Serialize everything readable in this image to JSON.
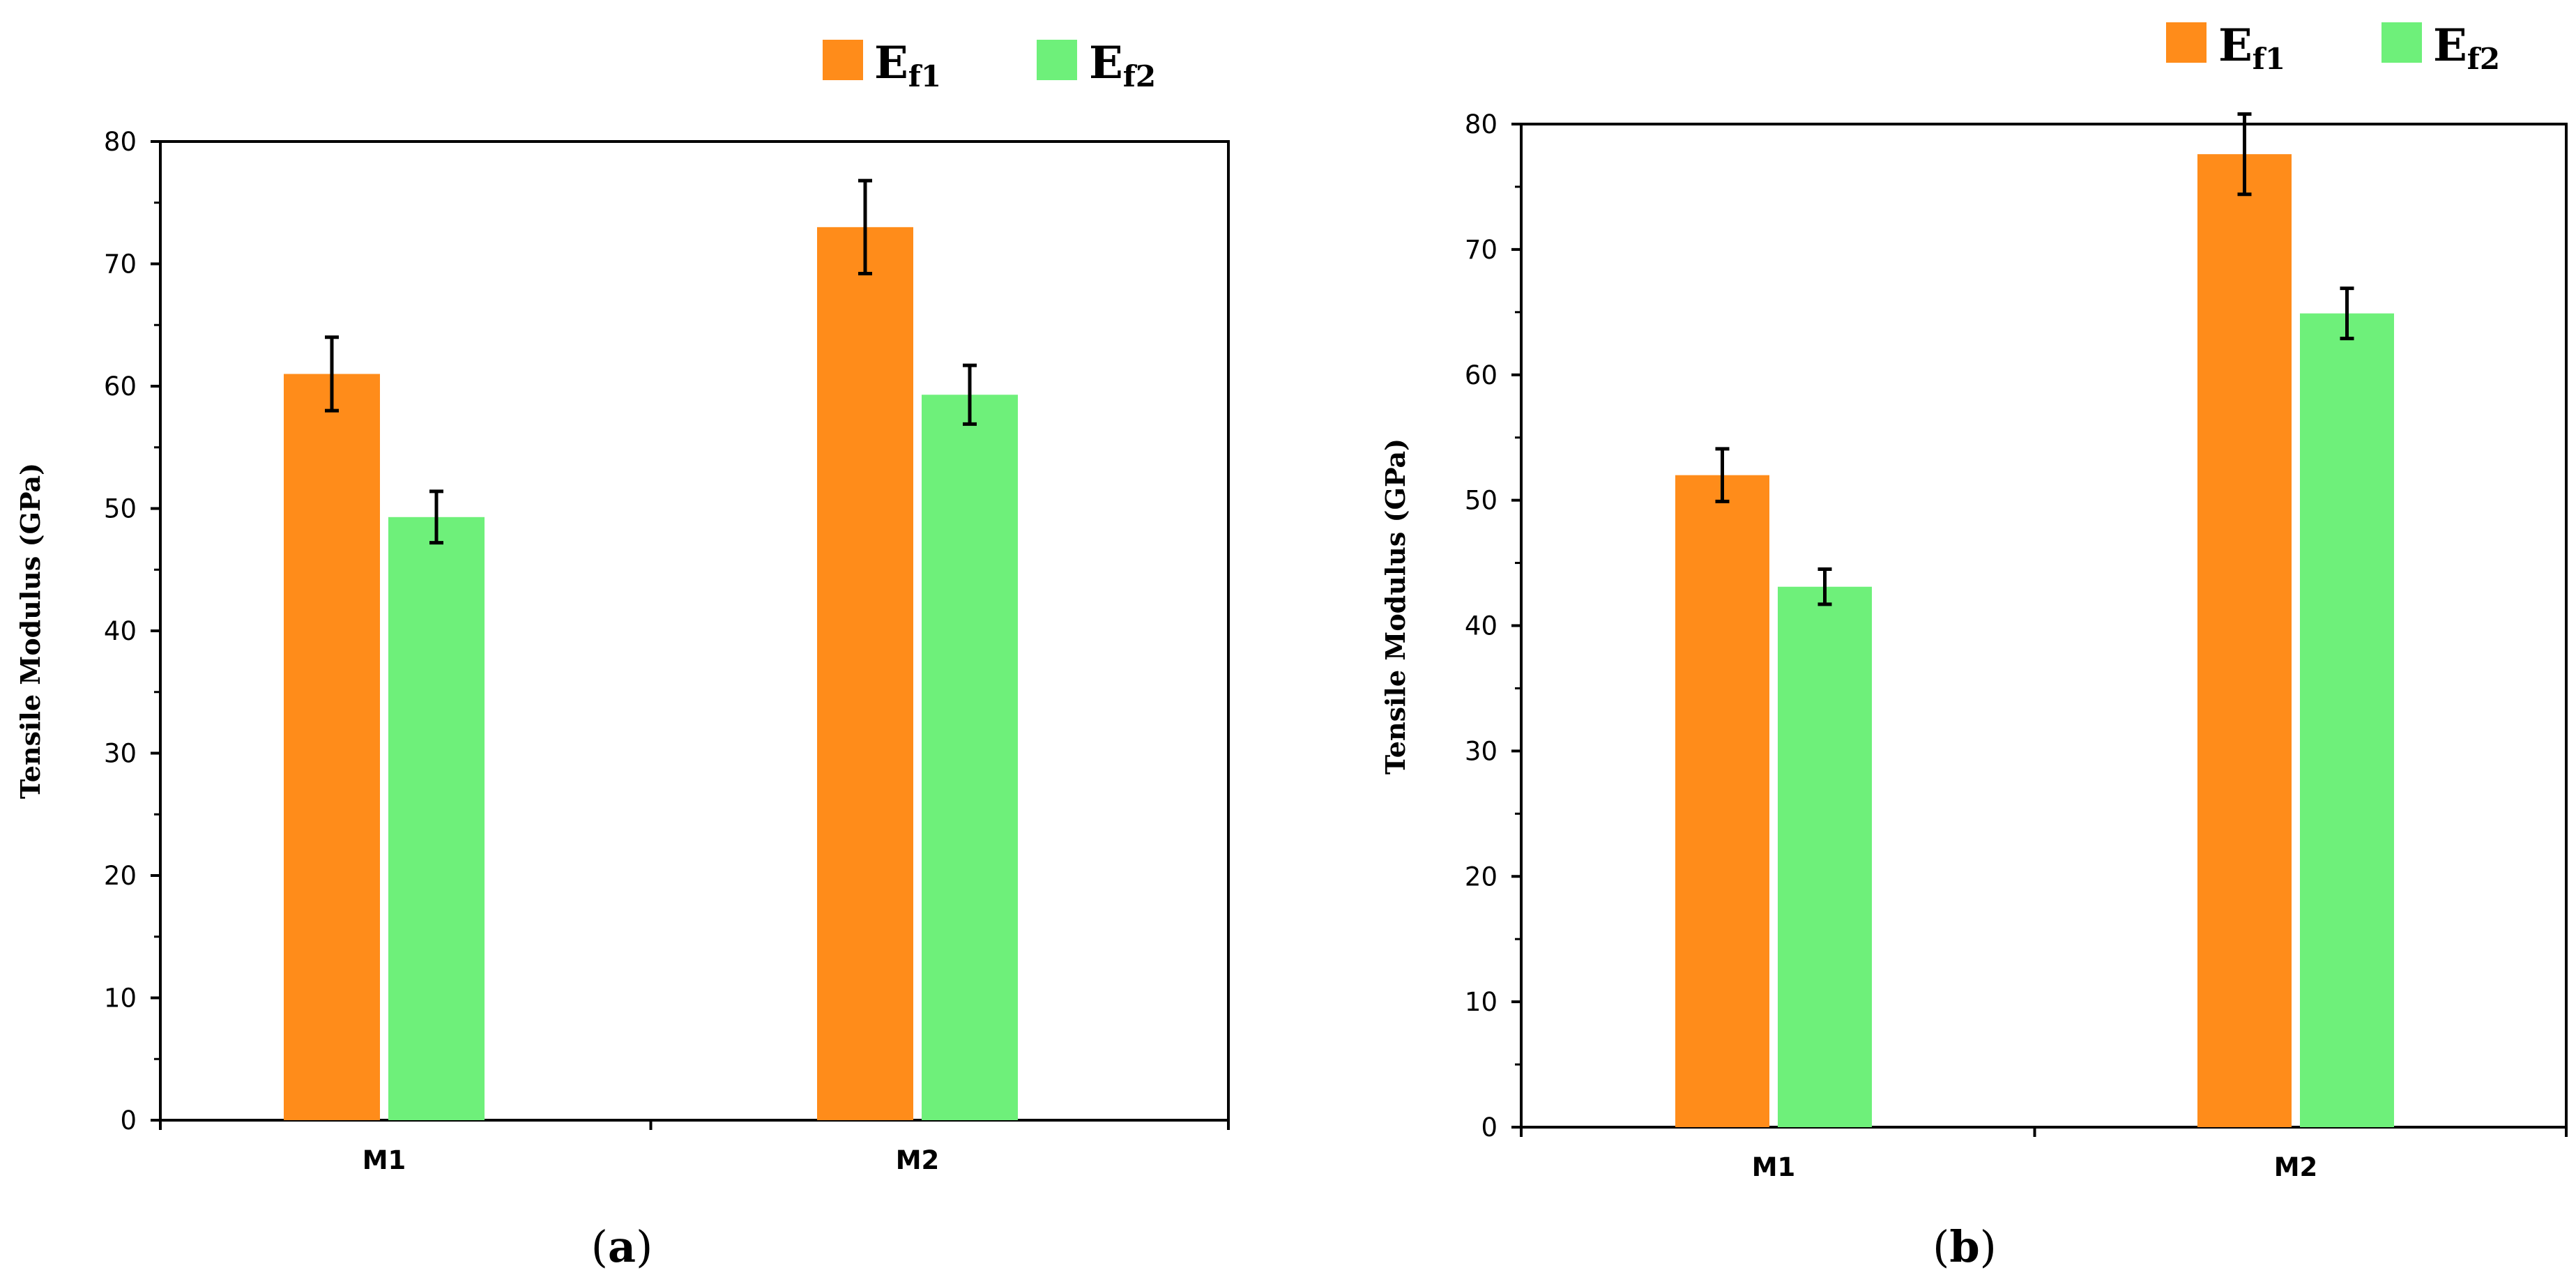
{
  "colors": {
    "series1": "#ff8c1a",
    "series2": "#6ef07a",
    "axis": "#000000",
    "errorbar": "#000000",
    "text": "#000000"
  },
  "chart_data": [
    {
      "type": "bar",
      "panel_label": "a",
      "categories": [
        "M1",
        "M2"
      ],
      "series": [
        {
          "name": "Ef1",
          "base": "E",
          "sub": "f1",
          "values": [
            61,
            73
          ],
          "errors": [
            3,
            3.8
          ]
        },
        {
          "name": "Ef2",
          "base": "E",
          "sub": "f2",
          "values": [
            49.3,
            59.3
          ],
          "errors": [
            2.1,
            2.4
          ]
        }
      ],
      "title": "",
      "xlabel": "",
      "ylabel": "Tensile Modulus (GPa)",
      "ylim": [
        0,
        80
      ],
      "yticks": [
        0,
        10,
        20,
        30,
        40,
        50,
        60,
        70,
        80
      ],
      "grid": false,
      "legend": "top-right"
    },
    {
      "type": "bar",
      "panel_label": "b",
      "categories": [
        "M1",
        "M2"
      ],
      "series": [
        {
          "name": "Ef1",
          "base": "E",
          "sub": "f1",
          "values": [
            52,
            77.6
          ],
          "errors": [
            2.1,
            3.2
          ]
        },
        {
          "name": "Ef2",
          "base": "E",
          "sub": "f2",
          "values": [
            43.1,
            64.9
          ],
          "errors": [
            1.4,
            2
          ]
        }
      ],
      "title": "",
      "xlabel": "",
      "ylabel": "Tensile Modulus (GPa)",
      "ylim": [
        0,
        80
      ],
      "yticks": [
        0,
        10,
        20,
        30,
        40,
        50,
        60,
        70,
        80
      ],
      "grid": false,
      "legend": "top-right"
    }
  ]
}
